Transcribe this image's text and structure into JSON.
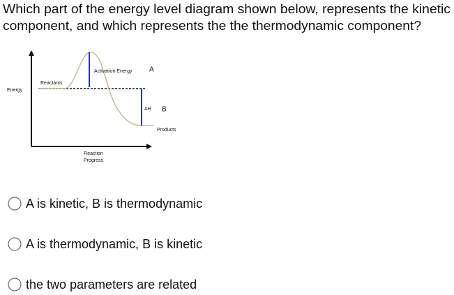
{
  "question": {
    "lines": [
      "Which part of the energy level diagram shown below, represents the kinetic",
      "component, and which represents the the thermodynamic component?"
    ]
  },
  "diagram": {
    "y_axis_label": "Energy",
    "x_axis_label": [
      "Reaction",
      "Progress"
    ],
    "reactants": "Reactants",
    "products": "Products",
    "activation_energy": "Activation Energy",
    "delta_h": "ΔH",
    "marker_a": "A",
    "marker_b": "B"
  },
  "options": [
    "A is kinetic, B is thermodynamic",
    "A is thermodynamic, B is kinetic",
    "the two parameters are related"
  ]
}
